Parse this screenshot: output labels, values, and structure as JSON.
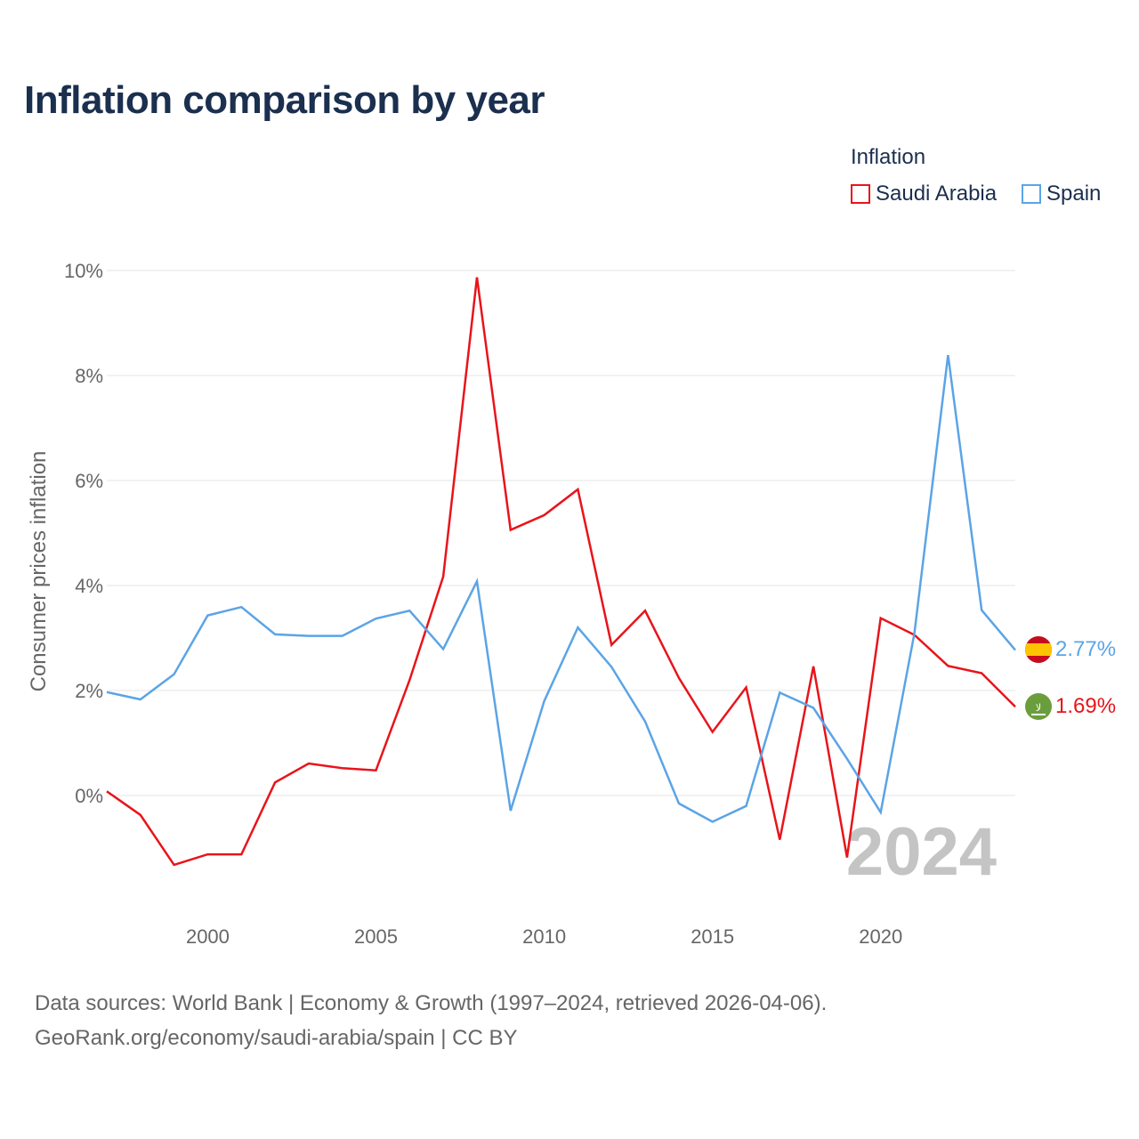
{
  "title": "Inflation comparison by year",
  "legend": {
    "title": "Inflation",
    "items": [
      {
        "label": "Saudi Arabia",
        "color": "#e8141a"
      },
      {
        "label": "Spain",
        "color": "#5ba4e6"
      }
    ]
  },
  "year_watermark": "2024",
  "source": {
    "line1": "Data sources: World Bank | Economy & Growth (1997–2024, retrieved 2026-04-06).",
    "line2": "GeoRank.org/economy/saudi-arabia/spain | CC BY"
  },
  "end_labels": {
    "spain": "2.77%",
    "saudi": "1.69%"
  },
  "flags": {
    "spain_icon": "spain-flag-icon",
    "saudi_icon": "saudi-arabia-flag-icon"
  },
  "chart_data": {
    "type": "line",
    "title": "Inflation comparison by year",
    "xlabel": "",
    "ylabel": "Consumer prices inflation",
    "ylim": [
      -2,
      10
    ],
    "xlim": [
      1997,
      2024
    ],
    "y_ticks": [
      0,
      2,
      4,
      6,
      8,
      10
    ],
    "y_tick_labels": [
      "0%",
      "2%",
      "4%",
      "6%",
      "8%",
      "10%"
    ],
    "x_ticks": [
      2000,
      2005,
      2010,
      2015,
      2020
    ],
    "x_tick_labels": [
      "2000",
      "2005",
      "2010",
      "2015",
      "2020"
    ],
    "grid": true,
    "legend_position": "top-right",
    "x": [
      1997,
      1998,
      1999,
      2000,
      2001,
      2002,
      2003,
      2004,
      2005,
      2006,
      2007,
      2008,
      2009,
      2010,
      2011,
      2012,
      2013,
      2014,
      2015,
      2016,
      2017,
      2018,
      2019,
      2020,
      2021,
      2022,
      2023,
      2024
    ],
    "series": [
      {
        "name": "Saudi Arabia",
        "color": "#e8141a",
        "values": [
          0.08,
          -0.37,
          -1.32,
          -1.12,
          -1.12,
          0.25,
          0.61,
          0.52,
          0.48,
          2.2,
          4.17,
          9.87,
          5.06,
          5.34,
          5.83,
          2.87,
          3.52,
          2.24,
          1.21,
          2.06,
          -0.84,
          2.46,
          -1.18,
          3.38,
          3.06,
          2.47,
          2.33,
          1.69
        ]
      },
      {
        "name": "Spain",
        "color": "#5ba4e6",
        "values": [
          1.97,
          1.83,
          2.31,
          3.43,
          3.59,
          3.07,
          3.04,
          3.04,
          3.37,
          3.52,
          2.79,
          4.08,
          -0.29,
          1.8,
          3.2,
          2.45,
          1.41,
          -0.15,
          -0.5,
          -0.2,
          1.96,
          1.67,
          0.7,
          -0.32,
          3.09,
          8.39,
          3.53,
          2.77
        ]
      }
    ]
  }
}
